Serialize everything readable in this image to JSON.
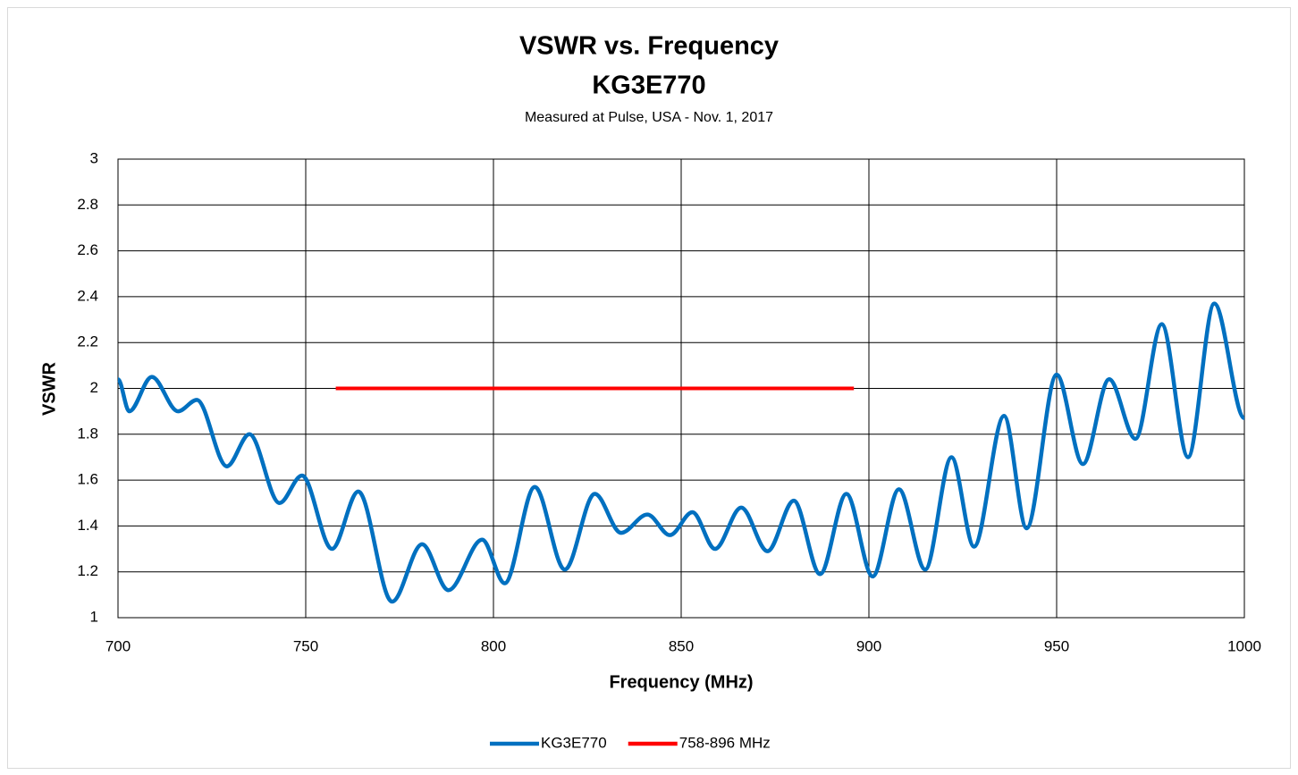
{
  "chart_data": {
    "type": "line",
    "title": "VSWR vs. Frequency",
    "subtitle_1": "KG3E770",
    "subtitle_2": "Measured at Pulse, USA - Nov. 1, 2017",
    "xlabel": "Frequency (MHz)",
    "ylabel": "VSWR",
    "xlim": [
      700,
      1000
    ],
    "ylim": [
      1,
      3
    ],
    "xticks": [
      700,
      750,
      800,
      850,
      900,
      950,
      1000
    ],
    "yticks": [
      1,
      1.2,
      1.4,
      1.6,
      1.8,
      2,
      2.2,
      2.4,
      2.6,
      2.8,
      3
    ],
    "grid": true,
    "legend": "bottom",
    "series": [
      {
        "name": "KG3E770",
        "color": "#0070c0",
        "x": [
          700,
          703,
          709,
          716,
          721,
          729,
          735,
          743,
          749,
          757,
          764,
          773,
          781,
          788,
          797,
          803,
          811,
          819,
          827,
          834,
          841,
          847,
          853,
          859,
          866,
          873,
          880,
          887,
          894,
          901,
          908,
          915,
          922,
          928,
          936,
          942,
          950,
          957,
          964,
          971,
          978,
          985,
          992,
          1000
        ],
        "values": [
          2.04,
          1.9,
          2.05,
          1.9,
          1.95,
          1.66,
          1.8,
          1.5,
          1.62,
          1.3,
          1.55,
          1.07,
          1.32,
          1.12,
          1.34,
          1.15,
          1.57,
          1.21,
          1.54,
          1.37,
          1.45,
          1.36,
          1.46,
          1.3,
          1.48,
          1.29,
          1.51,
          1.19,
          1.54,
          1.18,
          1.56,
          1.21,
          1.7,
          1.31,
          1.88,
          1.39,
          2.06,
          1.67,
          2.04,
          1.78,
          2.28,
          1.7,
          2.37,
          1.87
        ]
      },
      {
        "name": "758-896 MHz",
        "color": "#ff0000",
        "x": [
          758,
          896
        ],
        "values": [
          2,
          2
        ]
      }
    ]
  }
}
